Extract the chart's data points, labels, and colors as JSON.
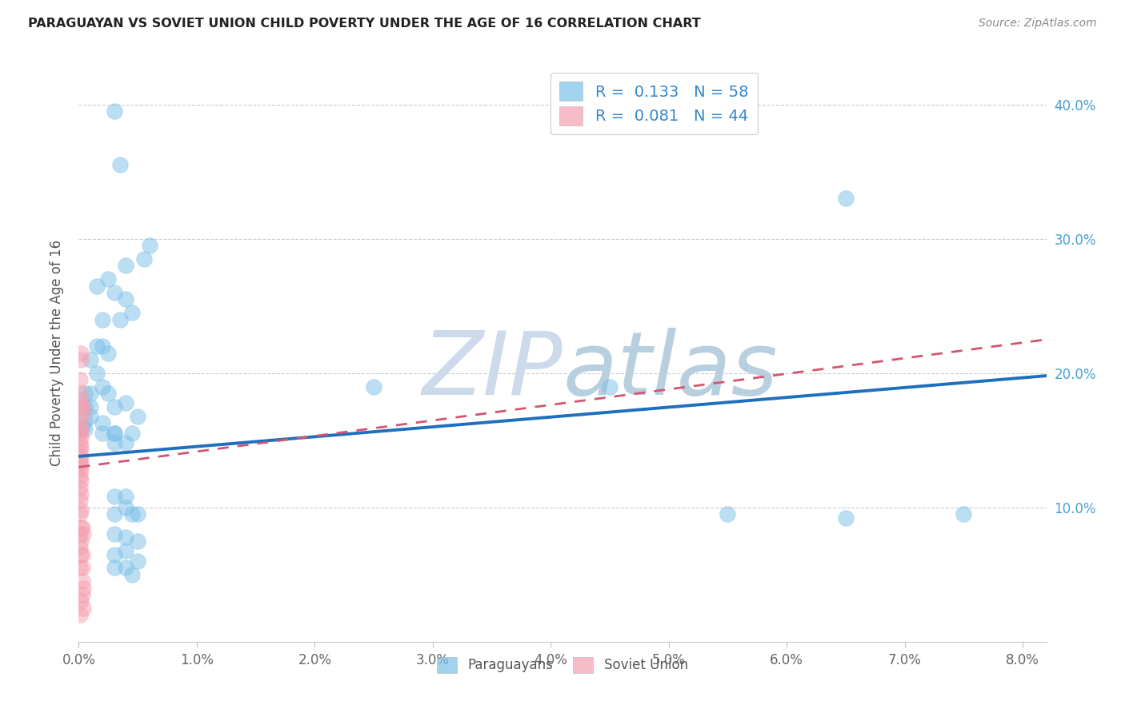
{
  "title": "PARAGUAYAN VS SOVIET UNION CHILD POVERTY UNDER THE AGE OF 16 CORRELATION CHART",
  "source": "Source: ZipAtlas.com",
  "ylabel": "Child Poverty Under the Age of 16",
  "x_ticks": [
    0.0,
    0.01,
    0.02,
    0.03,
    0.04,
    0.05,
    0.06,
    0.07,
    0.08
  ],
  "x_tick_labels": [
    "0.0%",
    "1.0%",
    "2.0%",
    "3.0%",
    "4.0%",
    "5.0%",
    "6.0%",
    "7.0%",
    "8.0%"
  ],
  "y_ticks": [
    0.0,
    0.1,
    0.2,
    0.3,
    0.4
  ],
  "y_tick_labels": [
    "",
    "10.0%",
    "20.0%",
    "30.0%",
    "40.0%"
  ],
  "xlim": [
    0.0,
    0.082
  ],
  "ylim": [
    0.0,
    0.43
  ],
  "paraguayan_R": "0.133",
  "paraguayan_N": "58",
  "soviet_R": "0.081",
  "soviet_N": "44",
  "paraguayan_color": "#7abfe8",
  "soviet_color": "#f4a0b0",
  "paraguayan_line_color": "#1f6fbf",
  "soviet_line_color": "#d45570",
  "watermark_color": "#ccdaec",
  "background_color": "#ffffff",
  "par_line_y0": 0.138,
  "par_line_y1": 0.198,
  "sov_line_y0": 0.13,
  "sov_line_y1": 0.225,
  "paraguayan_x": [
    0.003,
    0.004,
    0.0035,
    0.0055,
    0.006,
    0.0045,
    0.0025,
    0.003,
    0.004,
    0.0015,
    0.002,
    0.0035,
    0.0015,
    0.002,
    0.0025,
    0.001,
    0.0015,
    0.002,
    0.0005,
    0.001,
    0.0025,
    0.0005,
    0.001,
    0.003,
    0.0005,
    0.001,
    0.002,
    0.0003,
    0.0005,
    0.002,
    0.003,
    0.004,
    0.025,
    0.005,
    0.003,
    0.0045,
    0.003,
    0.004,
    0.003,
    0.004,
    0.003,
    0.004,
    0.0045,
    0.005,
    0.003,
    0.004,
    0.005,
    0.004,
    0.003,
    0.005,
    0.004,
    0.003,
    0.0045,
    0.045,
    0.065,
    0.055,
    0.065,
    0.075
  ],
  "paraguayan_y": [
    0.395,
    0.28,
    0.355,
    0.285,
    0.295,
    0.245,
    0.27,
    0.26,
    0.255,
    0.265,
    0.24,
    0.24,
    0.22,
    0.22,
    0.215,
    0.21,
    0.2,
    0.19,
    0.185,
    0.185,
    0.185,
    0.175,
    0.175,
    0.175,
    0.165,
    0.168,
    0.163,
    0.16,
    0.158,
    0.155,
    0.155,
    0.178,
    0.19,
    0.168,
    0.155,
    0.155,
    0.148,
    0.148,
    0.108,
    0.108,
    0.095,
    0.1,
    0.095,
    0.095,
    0.08,
    0.078,
    0.075,
    0.068,
    0.065,
    0.06,
    0.055,
    0.055,
    0.05,
    0.19,
    0.33,
    0.095,
    0.092,
    0.095
  ],
  "soviet_x": [
    0.0002,
    0.0002,
    0.0001,
    0.0001,
    0.0002,
    0.0002,
    0.0001,
    0.0001,
    0.0002,
    0.0001,
    0.0002,
    0.0001,
    0.0002,
    0.0001,
    0.0002,
    0.0001,
    0.0002,
    0.0001,
    0.0002,
    0.0001,
    0.0002,
    0.0001,
    0.0002,
    0.0001,
    0.0002,
    0.0001,
    0.0002,
    0.0001,
    0.0002,
    0.0001,
    0.0002,
    0.0001,
    0.0003,
    0.0004,
    0.0003,
    0.0004,
    0.0003,
    0.0003,
    0.0003,
    0.0004,
    0.0003,
    0.0002,
    0.0004,
    0.0001
  ],
  "soviet_y": [
    0.215,
    0.21,
    0.195,
    0.185,
    0.18,
    0.175,
    0.165,
    0.16,
    0.158,
    0.155,
    0.152,
    0.148,
    0.145,
    0.142,
    0.138,
    0.135,
    0.133,
    0.13,
    0.128,
    0.123,
    0.12,
    0.115,
    0.11,
    0.105,
    0.098,
    0.095,
    0.085,
    0.08,
    0.075,
    0.07,
    0.065,
    0.055,
    0.175,
    0.17,
    0.085,
    0.08,
    0.065,
    0.055,
    0.045,
    0.04,
    0.035,
    0.03,
    0.025,
    0.02
  ]
}
